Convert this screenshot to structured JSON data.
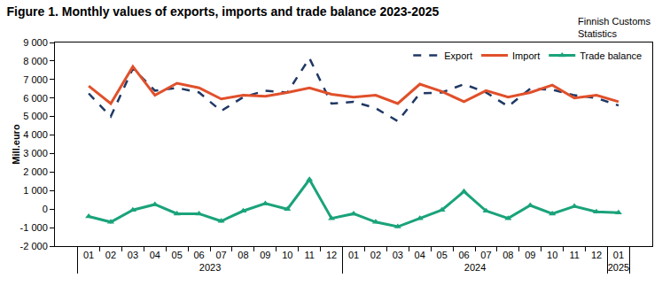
{
  "chart_data": {
    "type": "line",
    "title": "Figure 1. Monthly values of exports, imports and trade balance 2023-2025",
    "source": [
      "Finnish Customs",
      "Statistics"
    ],
    "y_label": "Mill.euro",
    "categories": [
      "01",
      "02",
      "03",
      "04",
      "05",
      "06",
      "07",
      "08",
      "09",
      "10",
      "11",
      "12",
      "01",
      "02",
      "03",
      "04",
      "05",
      "06",
      "07",
      "08",
      "09",
      "10",
      "11",
      "12",
      "01"
    ],
    "category_groups": [
      "2023",
      "2023",
      "2023",
      "2023",
      "2023",
      "2023",
      "2023",
      "2023",
      "2023",
      "2023",
      "2023",
      "2023",
      "2024",
      "2024",
      "2024",
      "2024",
      "2024",
      "2024",
      "2024",
      "2024",
      "2024",
      "2024",
      "2024",
      "2024",
      "2025"
    ],
    "series": [
      {
        "name": "Export",
        "color": "#1f3864",
        "line_style": "dash",
        "marker": "none",
        "values": [
          6250,
          5000,
          7600,
          6400,
          6550,
          6300,
          5300,
          6050,
          6400,
          6300,
          8150,
          5700,
          5800,
          5450,
          4750,
          6250,
          6300,
          6750,
          6300,
          5550,
          6500,
          6450,
          6150,
          6000,
          5600
        ]
      },
      {
        "name": "Import",
        "color": "#e0502b",
        "line_style": "solid",
        "marker": "none",
        "values": [
          6650,
          5700,
          7700,
          6150,
          6800,
          6550,
          5950,
          6150,
          6100,
          6300,
          6550,
          6200,
          6050,
          6150,
          5700,
          6750,
          6350,
          5800,
          6400,
          6050,
          6300,
          6700,
          6000,
          6150,
          5800
        ]
      },
      {
        "name": "Trade balance",
        "color": "#1aa37a",
        "line_style": "solid",
        "marker": "triangle-up",
        "values": [
          -400,
          -700,
          -50,
          250,
          -250,
          -250,
          -650,
          -100,
          300,
          0,
          1600,
          -500,
          -250,
          -700,
          -950,
          -500,
          -50,
          950,
          -100,
          -500,
          200,
          -250,
          150,
          -150,
          -200
        ]
      }
    ],
    "ylim": [
      -2000,
      9000
    ],
    "yticks": [
      {
        "value": -2000,
        "label": "-2 000"
      },
      {
        "value": -1000,
        "label": "-1 000"
      },
      0,
      {
        "value": 1000,
        "label": "1 000"
      },
      {
        "value": 2000,
        "label": "2 000"
      },
      {
        "value": 3000,
        "label": "3 000"
      },
      {
        "value": 4000,
        "label": "4 000"
      },
      {
        "value": 5000,
        "label": "5 000"
      },
      {
        "value": 6000,
        "label": "6 000"
      },
      {
        "value": 7000,
        "label": "7 000"
      },
      {
        "value": 8000,
        "label": "8 000"
      },
      {
        "value": 9000,
        "label": "9 000"
      }
    ],
    "grid": false,
    "legend": "top right"
  }
}
